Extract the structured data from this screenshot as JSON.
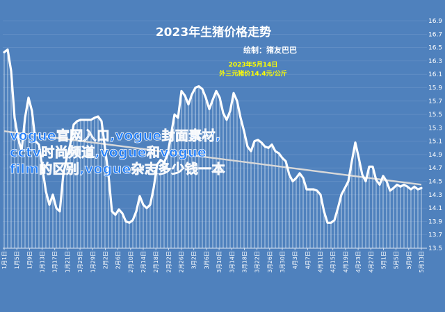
{
  "chart_data": {
    "type": "line",
    "title": "2023年生猪价格走势",
    "author": "绘制：猪友巴巴",
    "annotation_date": "2023年5月14日",
    "annotation_price": "外三元猪价14.4元/公斤",
    "ylim": [
      13.5,
      16.9
    ],
    "yticks": [
      "13.5",
      "13.7",
      "13.9",
      "14.1",
      "14.3",
      "14.5",
      "14.7",
      "14.9",
      "15.1",
      "15.3",
      "15.5",
      "15.7",
      "15.9",
      "16.1",
      "16.3",
      "16.5",
      "16.7",
      "16.9"
    ],
    "xticks": [
      "1月1日",
      "1月5日",
      "1月9日",
      "1月13日",
      "1月17日",
      "1月21日",
      "1月25日",
      "1月29日",
      "2月2日",
      "2月6日",
      "2月10日",
      "2月14日",
      "2月18日",
      "2月22日",
      "2月26日",
      "3月2日",
      "3月6日",
      "3月10日",
      "3月14日",
      "3月18日",
      "3月22日",
      "3月26日",
      "3月30日",
      "4月3日",
      "4月7日",
      "4月11日",
      "4月15日",
      "4月19日",
      "4月23日",
      "4月27日",
      "5月1日",
      "5月5日",
      "5月9日",
      "5月13日"
    ],
    "series": [
      {
        "values": [
          16.43,
          16.47,
          16.15,
          15.45,
          15.15,
          14.95,
          15.45,
          15.75,
          15.55,
          15.1,
          15.05,
          14.7,
          14.35,
          14.15,
          14.3,
          14.1,
          14.05,
          14.6,
          14.85,
          15.05,
          15.35,
          15.4,
          15.42,
          15.42,
          15.42,
          15.42,
          15.45,
          15.47,
          15.4,
          15.0,
          14.6,
          14.05,
          14.0,
          14.08,
          14.02,
          13.9,
          13.88,
          13.92,
          14.05,
          14.28,
          14.15,
          14.1,
          14.15,
          14.4,
          14.75,
          14.82,
          14.78,
          14.9,
          15.2,
          15.5,
          15.45,
          15.85,
          15.78,
          15.65,
          15.8,
          15.9,
          15.92,
          15.88,
          15.75,
          15.58,
          15.72,
          15.85,
          15.75,
          15.52,
          15.42,
          15.55,
          15.82,
          15.7,
          15.45,
          15.25,
          15.02,
          14.95,
          15.1,
          15.12,
          15.08,
          15.02,
          15.0,
          15.05,
          14.95,
          14.92,
          14.85,
          14.8,
          14.6,
          14.5,
          14.55,
          14.62,
          14.55,
          14.38,
          14.38,
          14.38,
          14.36,
          14.3,
          14.05,
          13.88,
          13.88,
          13.92,
          14.1,
          14.3,
          14.4,
          14.5,
          14.8,
          15.08,
          14.85,
          14.6,
          14.5,
          14.72,
          14.72,
          14.52,
          14.45,
          14.58,
          14.5,
          14.36,
          14.4,
          14.45,
          14.42,
          14.45,
          14.42,
          14.38,
          14.42,
          14.38,
          14.4
        ],
        "color": "#ffffff"
      }
    ],
    "trendline": {
      "start": 15.25,
      "end": 14.45,
      "color": "#d9d9d9"
    }
  },
  "watermark": {
    "line1": "vogue官网入口,vogue封面素材,",
    "line2": "cctv时尚频道,vogue和vogue",
    "line3": "film的区别,vogue杂志多少钱一本"
  }
}
